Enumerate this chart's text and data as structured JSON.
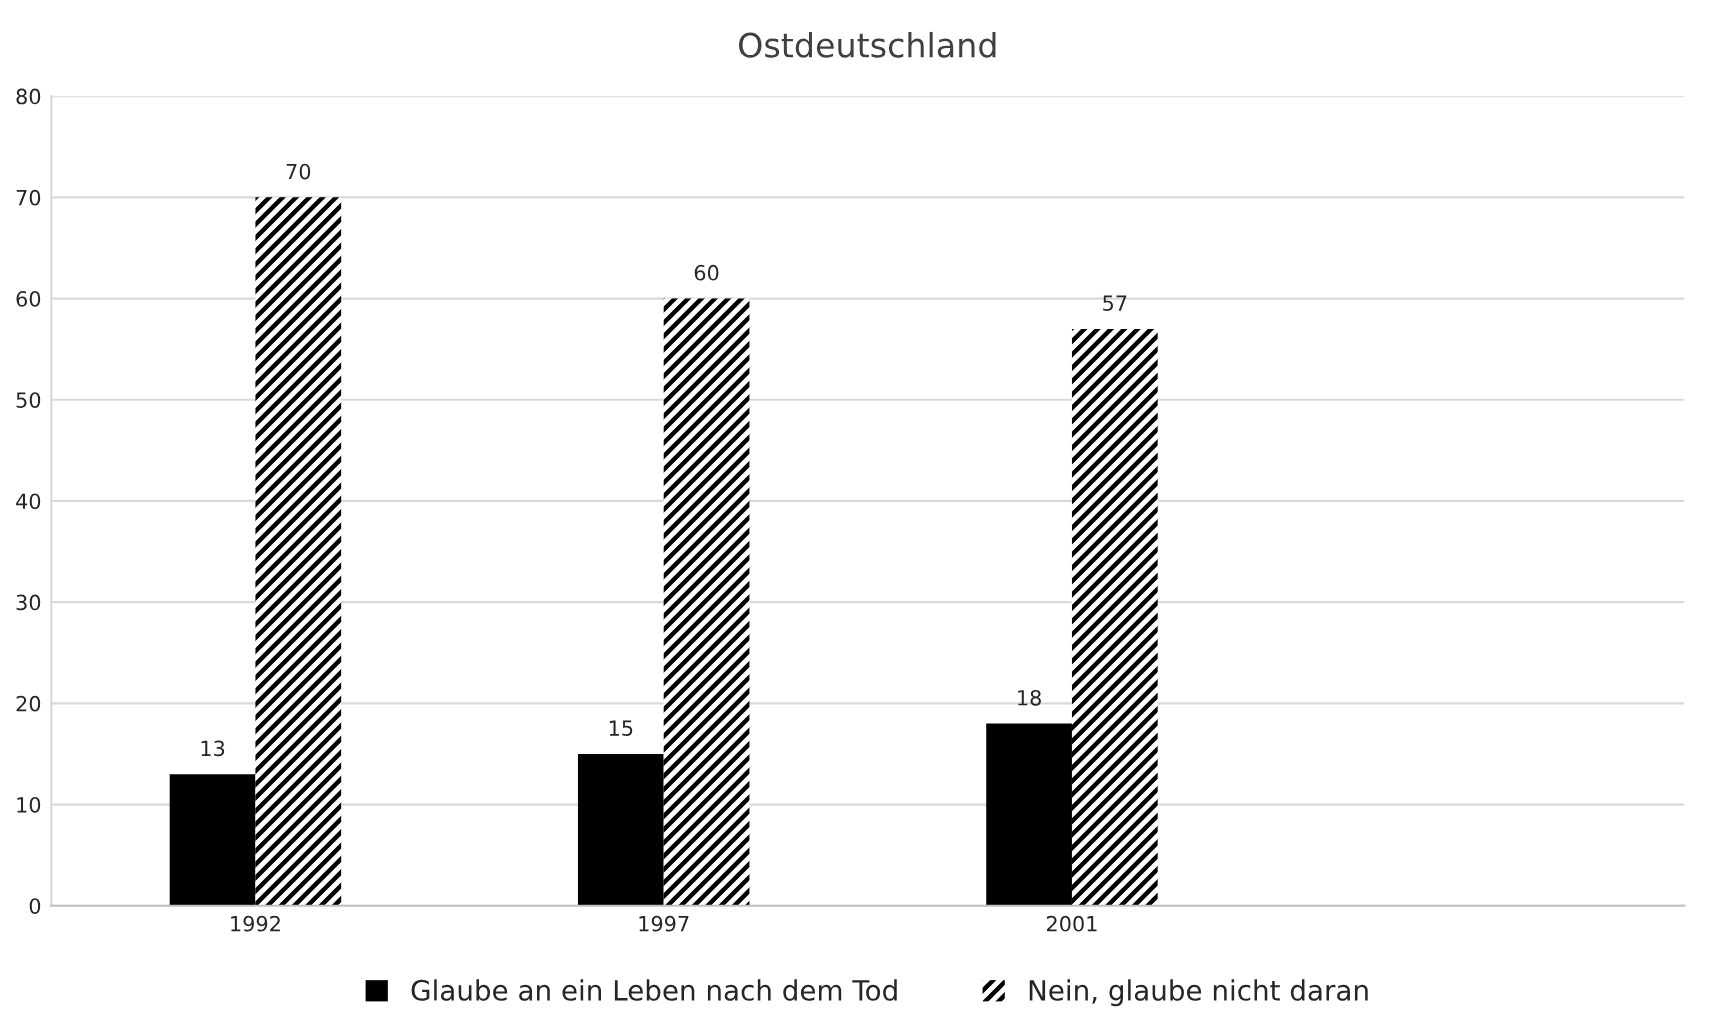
{
  "chart_data": {
    "type": "bar",
    "title": "Ostdeutschland",
    "categories": [
      "1992",
      "1997",
      "2001",
      null
    ],
    "series": [
      {
        "name": "Glaube an ein Leben nach dem Tod",
        "color": "#000000",
        "values": [
          13,
          15,
          18,
          null
        ]
      },
      {
        "name": "Nein, glaube nicht daran",
        "color": "#000000",
        "values": [
          70,
          60,
          57,
          null
        ]
      }
    ],
    "ylim": [
      0,
      80
    ],
    "yticks": [
      0,
      10,
      20,
      30,
      40,
      50,
      60,
      70,
      80
    ],
    "grid": "y",
    "legend": "bottom",
    "data_labels": true
  }
}
